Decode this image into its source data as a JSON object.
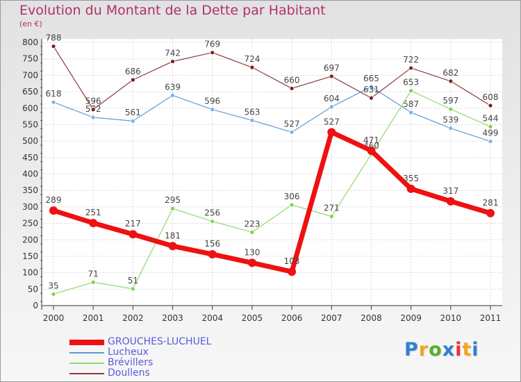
{
  "title": "Evolution du Montant de la Dette par Habitant",
  "subtitle": "(en €)",
  "brand": {
    "letters": [
      "P",
      "r",
      "o",
      "x",
      "i",
      "t",
      "i"
    ],
    "colors": [
      "#2f7fd0",
      "#f2a61b",
      "#55b02d",
      "#2f7fd0",
      "#e8332c",
      "#f2a61b",
      "#2f7fd0"
    ]
  },
  "chart_data": {
    "type": "line",
    "title": "Evolution du Montant de la Dette par Habitant",
    "ylabel": "(en €)",
    "xlabel": "",
    "ylim": [
      0,
      800
    ],
    "ytick_step": 50,
    "grid": true,
    "legend_position": "bottom-left",
    "x": [
      "2000",
      "2001",
      "2002",
      "2003",
      "2004",
      "2005",
      "2006",
      "2007",
      "2008",
      "2009",
      "2010",
      "2011"
    ],
    "series": [
      {
        "name": "Lucheux",
        "color": "#5b9bd5",
        "marker_fill": "#79b3e8",
        "width": 1.2,
        "marker_r": 3,
        "values": [
          618,
          572,
          561,
          639,
          596,
          563,
          527,
          604,
          665,
          587,
          539,
          499
        ]
      },
      {
        "name": "Brévillers",
        "color": "#90d870",
        "marker_fill": "#7cd34e",
        "width": 1.2,
        "marker_r": 3,
        "values": [
          35,
          71,
          51,
          295,
          256,
          223,
          306,
          271,
          460,
          653,
          597,
          544
        ]
      },
      {
        "name": "Doullens",
        "color": "#8b3a3a",
        "marker_fill": "#7a2020",
        "width": 1.2,
        "marker_r": 3,
        "values": [
          788,
          596,
          686,
          742,
          769,
          724,
          660,
          697,
          631,
          722,
          682,
          608
        ]
      },
      {
        "name": "GROUCHES-LUCHUEL",
        "color": "#ee1111",
        "marker_fill": "#ee1111",
        "width": 7,
        "marker_r": 6,
        "values": [
          289,
          251,
          217,
          181,
          156,
          130,
          103,
          527,
          471,
          355,
          317,
          281
        ]
      }
    ],
    "legend_order": [
      "GROUCHES-LUCHUEL",
      "Lucheux",
      "Brévillers",
      "Doullens"
    ]
  }
}
